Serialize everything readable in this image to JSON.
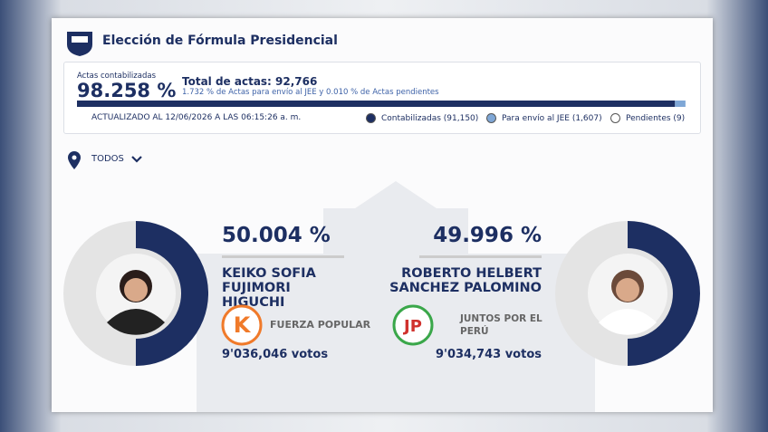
{
  "header": {
    "title": "Elección de Fórmula Presidencial"
  },
  "summary": {
    "counted_label": "Actas contabilizadas",
    "counted_pct": {
      "value": 98.258,
      "label": "98.258 %"
    },
    "total": "Total de actas: 92,766",
    "jee_pct": {
      "value": 1.732,
      "label": "1.732 %"
    },
    "jee_text": " de Actas para envío al JEE y ",
    "pending_pct": {
      "value": 0.01,
      "label": "0.010 %"
    },
    "pending_text": " de Actas pendientes",
    "updated": "ACTUALIZADO AL 12/06/2026 A LAS 06:15:26 a. m.",
    "legend": [
      "Contabilizadas (91,150)",
      "Para envío al JEE (1,607)",
      "Pendientes (9)"
    ]
  },
  "filter": "TODOS",
  "candidates": [
    {
      "percent": {
        "value": 50.004,
        "label": "50.004 %"
      },
      "name": "KEIKO SOFIA FUJIMORI HIGUCHI",
      "party_logo": "K",
      "party": "FUERZA POPULAR",
      "votes": "9'036,046 votos"
    },
    {
      "percent": {
        "value": 49.996,
        "label": "49.996 %"
      },
      "name": "ROBERTO HELBERT SANCHEZ PALOMINO",
      "party_logo": "JP",
      "party": "JUNTOS POR EL PERÚ",
      "votes": "9'034,743 votos"
    }
  ]
}
